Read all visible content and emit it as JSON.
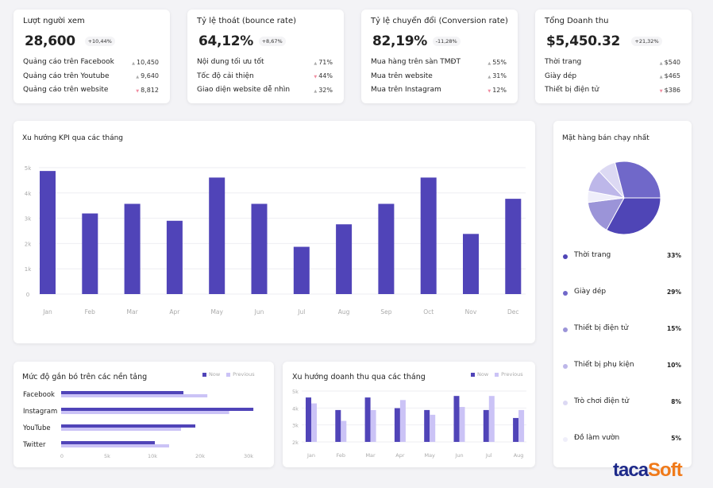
{
  "kpis": [
    {
      "title": "Lượt người xem",
      "value": "28,600",
      "change": "+10,44%",
      "rows": [
        {
          "label": "Quảng cáo trên Facebook",
          "value": "10,450",
          "trend": "up"
        },
        {
          "label": "Quảng cáo trên Youtube",
          "value": "9,640",
          "trend": "up"
        },
        {
          "label": "Quảng cáo trên website",
          "value": "8,812",
          "trend": "down"
        }
      ]
    },
    {
      "title": "Tỷ lệ thoát (bounce rate)",
      "value": "64,12%",
      "change": "+8,67%",
      "rows": [
        {
          "label": "Nội dung tối ưu tốt",
          "value": "71%",
          "trend": "up"
        },
        {
          "label": "Tốc độ cải thiện",
          "value": "44%",
          "trend": "down"
        },
        {
          "label": "Giao diện website dễ nhìn",
          "value": "32%",
          "trend": "up"
        }
      ]
    },
    {
      "title": "Tỷ lệ chuyển đổi (Conversion rate)",
      "value": "82,19%",
      "change": "-11,28%",
      "rows": [
        {
          "label": "Mua hàng trên sàn TMĐT",
          "value": "55%",
          "trend": "up"
        },
        {
          "label": "Mua trên website",
          "value": "31%",
          "trend": "up"
        },
        {
          "label": "Mua trên Instagram",
          "value": "12%",
          "trend": "down"
        }
      ]
    },
    {
      "title": "Tổng Doanh thu",
      "value": "$5,450.32",
      "change": "+21,32%",
      "rows": [
        {
          "label": "Thời trang",
          "value": "$540",
          "trend": "up"
        },
        {
          "label": "Giày dép",
          "value": "$465",
          "trend": "up"
        },
        {
          "label": "Thiết bị điện tử",
          "value": "$386",
          "trend": "down"
        }
      ]
    }
  ],
  "colors": {
    "now": "#5044b8",
    "previous": "#cbc3f6",
    "grid": "#eeeef2",
    "axis_text": "#aaaaaa",
    "up": "#aaaaaa",
    "down": "#f08ca0"
  },
  "chart_data": [
    {
      "type": "bar",
      "title": "Xu hướng KPI qua các tháng",
      "categories": [
        "Jan",
        "Feb",
        "Mar",
        "Apr",
        "May",
        "Jun",
        "Jul",
        "Aug",
        "Sep",
        "Oct",
        "Nov",
        "Dec"
      ],
      "values": [
        4870,
        3190,
        3570,
        2900,
        4610,
        3570,
        1870,
        2760,
        3570,
        4610,
        2380,
        3770
      ],
      "yticks": [
        "0",
        "1k",
        "2k",
        "3k",
        "4k",
        "5k"
      ],
      "ylim": [
        0,
        5000
      ],
      "grid": true
    },
    {
      "type": "bar",
      "orientation": "horizontal",
      "title": "Mức độ gắn bó trên các nền tảng",
      "categories": [
        "Facebook",
        "Instagram",
        "YouTube",
        "Twitter"
      ],
      "xticks": [
        "0",
        "5k",
        "10k",
        "20k",
        "30k"
      ],
      "xtick_values": [
        0,
        5000,
        10000,
        20000,
        30000
      ],
      "legend": [
        "Now",
        "Previous"
      ],
      "legend_position": "top-right",
      "series": [
        {
          "name": "Now",
          "values": [
            16500,
            31000,
            19000,
            10500
          ]
        },
        {
          "name": "Previous",
          "values": [
            21500,
            26000,
            16000,
            13500
          ]
        }
      ]
    },
    {
      "type": "bar",
      "title": "Xu hướng doanh thu qua các tháng",
      "categories": [
        "Jan",
        "Feb",
        "Mar",
        "Apr",
        "May",
        "Jun",
        "Jul",
        "Aug"
      ],
      "yticks": [
        "2k",
        "3k",
        "4k",
        "5k"
      ],
      "ylim": [
        2000,
        5000
      ],
      "grid": true,
      "legend": [
        "Now",
        "Previous"
      ],
      "legend_position": "top-right",
      "series": [
        {
          "name": "Now",
          "values": [
            4620,
            3880,
            4620,
            3990,
            3880,
            4710,
            3880,
            3410
          ]
        },
        {
          "name": "Previous",
          "values": [
            4270,
            3240,
            3880,
            4470,
            3600,
            4060,
            4710,
            3880
          ]
        }
      ]
    },
    {
      "type": "pie",
      "title": "Mặt hàng bán chạy nhất",
      "labels": [
        "Thời trang",
        "Giày dép",
        "Thiết bị điện tử",
        "Thiết bị phụ kiện",
        "Trò chơi điện tử",
        "Đồ làm vườn"
      ],
      "values": [
        33,
        29,
        15,
        10,
        8,
        5
      ],
      "display": [
        "33%",
        "29%",
        "15%",
        "10%",
        "8%",
        "5%"
      ],
      "colors": [
        "#4f45b6",
        "#7068c9",
        "#9b94d8",
        "#bdb7e9",
        "#dcd9f3",
        "#efeefa"
      ]
    }
  ],
  "logo": {
    "text_main": "taca",
    "text_accent": "Soft"
  }
}
